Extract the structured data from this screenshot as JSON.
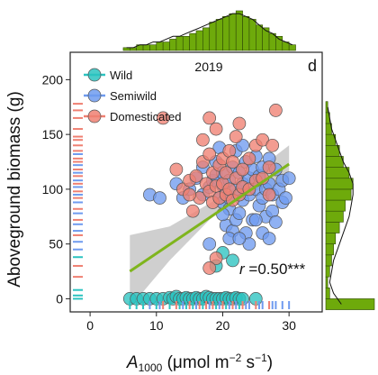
{
  "chart_data": {
    "type": "scatter",
    "panel_label": "d",
    "year": "2019",
    "ylabel": "Aboveground biomass (g)",
    "xlabel_A": "A",
    "xlabel_sub": "1000",
    "xlabel_rest_1": " (μmol m",
    "xlabel_sup_1": "−2",
    "xlabel_rest_2": " s",
    "xlabel_sup_2": "−1",
    "xlabel_rest_3": ")",
    "xlim": [
      -3,
      35
    ],
    "ylim": [
      -12,
      225
    ],
    "x_ticks": [
      0,
      10,
      20,
      30
    ],
    "y_ticks": [
      0,
      50,
      100,
      150,
      200
    ],
    "annotation_r": "r",
    "annotation_rest": " =0.50***",
    "grid": false,
    "legend": "top-left",
    "colors": {
      "wild": "#2cc3c0",
      "semiwild": "#6f9bef",
      "domesticated": "#ef8072",
      "fit": "#7fb51d",
      "band": "#bfbfbf",
      "hist": "#6eaa0b"
    },
    "series": [
      {
        "name": "Wild",
        "color": "#2cc3c0",
        "points": [
          [
            6,
            0
          ],
          [
            7,
            0
          ],
          [
            8,
            0
          ],
          [
            9,
            0
          ],
          [
            10,
            0
          ],
          [
            11,
            0
          ],
          [
            12,
            1
          ],
          [
            12.5,
            0
          ],
          [
            13,
            2
          ],
          [
            13.5,
            0
          ],
          [
            14,
            0
          ],
          [
            14.5,
            1
          ],
          [
            15,
            0
          ],
          [
            15.5,
            0
          ],
          [
            16,
            1
          ],
          [
            16.5,
            0
          ],
          [
            17,
            0
          ],
          [
            17.5,
            2
          ],
          [
            18,
            1
          ],
          [
            18.5,
            0
          ],
          [
            19,
            0
          ],
          [
            19.5,
            0
          ],
          [
            20,
            0
          ],
          [
            20.5,
            1
          ],
          [
            21,
            0
          ],
          [
            21.5,
            0
          ],
          [
            22,
            1
          ],
          [
            22.5,
            0
          ],
          [
            23,
            0
          ],
          [
            25,
            0
          ],
          [
            20,
            42
          ],
          [
            21.5,
            35
          ],
          [
            19,
            30
          ]
        ]
      },
      {
        "name": "Semiwild",
        "color": "#6f9bef",
        "points": [
          [
            9,
            95
          ],
          [
            10.5,
            92
          ],
          [
            13,
            105
          ],
          [
            14,
            92
          ],
          [
            15,
            100
          ],
          [
            16,
            110
          ],
          [
            17,
            95
          ],
          [
            17,
            120
          ],
          [
            18,
            102
          ],
          [
            18.5,
            108
          ],
          [
            19,
            113
          ],
          [
            19,
            125
          ],
          [
            19.5,
            92
          ],
          [
            19.5,
            138
          ],
          [
            20,
            88
          ],
          [
            20,
            103
          ],
          [
            20,
            115
          ],
          [
            20.5,
            67
          ],
          [
            21,
            82
          ],
          [
            21,
            92
          ],
          [
            21,
            108
          ],
          [
            21.5,
            120
          ],
          [
            21.5,
            62
          ],
          [
            22,
            72
          ],
          [
            22,
            100
          ],
          [
            22,
            135
          ],
          [
            22.5,
            78
          ],
          [
            22.5,
            115
          ],
          [
            23,
            90
          ],
          [
            23,
            105
          ],
          [
            23,
            140
          ],
          [
            23.5,
            60
          ],
          [
            23.5,
            125
          ],
          [
            24,
            95
          ],
          [
            24,
            110
          ],
          [
            24.5,
            72
          ],
          [
            24.5,
            118
          ],
          [
            25,
            100
          ],
          [
            25,
            130
          ],
          [
            25.5,
            85
          ],
          [
            25.5,
            112
          ],
          [
            26,
            60
          ],
          [
            26,
            92
          ],
          [
            26,
            120
          ],
          [
            26.5,
            75
          ],
          [
            26.5,
            100
          ],
          [
            27,
            105
          ],
          [
            27,
            128
          ],
          [
            27.5,
            80
          ],
          [
            27.5,
            95
          ],
          [
            28,
            70
          ],
          [
            28,
            118
          ],
          [
            28.5,
            100
          ],
          [
            29,
            88
          ],
          [
            29,
            108
          ],
          [
            29.5,
            92
          ],
          [
            30,
            110
          ],
          [
            21,
            55
          ],
          [
            18,
            50
          ],
          [
            24,
            50
          ],
          [
            27,
            55
          ],
          [
            20,
            77
          ],
          [
            25,
            72
          ],
          [
            22.5,
            55
          ]
        ]
      },
      {
        "name": "Domesticated",
        "color": "#ef8072",
        "points": [
          [
            11,
            165
          ],
          [
            13,
            118
          ],
          [
            14,
            100
          ],
          [
            15,
            108
          ],
          [
            15.5,
            80
          ],
          [
            16,
            112
          ],
          [
            16.5,
            92
          ],
          [
            17,
            125
          ],
          [
            17,
            145
          ],
          [
            17.5,
            105
          ],
          [
            18,
            98
          ],
          [
            18,
            132
          ],
          [
            18.5,
            88
          ],
          [
            18.5,
            115
          ],
          [
            19,
            103
          ],
          [
            19,
            155
          ],
          [
            19.5,
            92
          ],
          [
            19.5,
            122
          ],
          [
            20,
            105
          ],
          [
            20,
            128
          ],
          [
            20.5,
            95
          ],
          [
            20.5,
            115
          ],
          [
            21,
            100
          ],
          [
            21,
            135
          ],
          [
            21.5,
            90
          ],
          [
            21.5,
            125
          ],
          [
            22,
            110
          ],
          [
            22,
            148
          ],
          [
            22.5,
            95
          ],
          [
            22.5,
            160
          ],
          [
            23,
            102
          ],
          [
            23,
            118
          ],
          [
            24,
            100
          ],
          [
            24,
            128
          ],
          [
            25,
            108
          ],
          [
            25,
            140
          ],
          [
            26,
            110
          ],
          [
            26,
            145
          ],
          [
            27,
            95
          ],
          [
            27,
            120
          ],
          [
            27.5,
            140
          ],
          [
            28,
            172
          ],
          [
            19,
            37
          ],
          [
            18,
            28
          ],
          [
            15,
            95
          ],
          [
            18,
            165
          ]
        ]
      }
    ],
    "fit_line": {
      "x": [
        6,
        30
      ],
      "y": [
        25,
        123
      ]
    },
    "ci_band": {
      "x": [
        6,
        12,
        18,
        21,
        24,
        30
      ],
      "lower": [
        -8,
        35,
        72,
        86,
        97,
        107
      ],
      "upper": [
        58,
        66,
        87,
        98,
        112,
        140
      ]
    },
    "rug_x": [
      {
        "x": 6,
        "group": "wild"
      },
      {
        "x": 7,
        "group": "wild"
      },
      {
        "x": 8,
        "group": "wild"
      },
      {
        "x": 9,
        "group": "semiwild"
      },
      {
        "x": 10,
        "group": "wild"
      },
      {
        "x": 10.5,
        "group": "semiwild"
      },
      {
        "x": 11,
        "group": "domesticated"
      },
      {
        "x": 12,
        "group": "wild"
      },
      {
        "x": 13,
        "group": "domesticated"
      },
      {
        "x": 13.5,
        "group": "wild"
      },
      {
        "x": 14,
        "group": "semiwild"
      },
      {
        "x": 14.5,
        "group": "wild"
      },
      {
        "x": 15,
        "group": "domesticated"
      },
      {
        "x": 15.5,
        "group": "wild"
      },
      {
        "x": 16,
        "group": "semiwild"
      },
      {
        "x": 16.5,
        "group": "domesticated"
      },
      {
        "x": 17,
        "group": "wild"
      },
      {
        "x": 17.5,
        "group": "domesticated"
      },
      {
        "x": 18,
        "group": "semiwild"
      },
      {
        "x": 18.5,
        "group": "domesticated"
      },
      {
        "x": 19,
        "group": "wild"
      },
      {
        "x": 19.5,
        "group": "semiwild"
      },
      {
        "x": 20,
        "group": "domesticated"
      },
      {
        "x": 20.5,
        "group": "wild"
      },
      {
        "x": 21,
        "group": "semiwild"
      },
      {
        "x": 21.5,
        "group": "domesticated"
      },
      {
        "x": 22,
        "group": "semiwild"
      },
      {
        "x": 22.5,
        "group": "wild"
      },
      {
        "x": 23,
        "group": "domesticated"
      },
      {
        "x": 23.5,
        "group": "semiwild"
      },
      {
        "x": 24,
        "group": "semiwild"
      },
      {
        "x": 25,
        "group": "domesticated"
      },
      {
        "x": 25.5,
        "group": "semiwild"
      },
      {
        "x": 26,
        "group": "semiwild"
      },
      {
        "x": 27,
        "group": "domesticated"
      },
      {
        "x": 27.5,
        "group": "semiwild"
      },
      {
        "x": 28,
        "group": "semiwild"
      },
      {
        "x": 29,
        "group": "semiwild"
      },
      {
        "x": 30,
        "group": "semiwild"
      }
    ],
    "rug_y": [
      {
        "y": 0,
        "group": "wild"
      },
      {
        "y": 3,
        "group": "wild"
      },
      {
        "y": 8,
        "group": "wild"
      },
      {
        "y": 20,
        "group": "domesticated"
      },
      {
        "y": 30,
        "group": "domesticated"
      },
      {
        "y": 38,
        "group": "wild"
      },
      {
        "y": 45,
        "group": "semiwild"
      },
      {
        "y": 52,
        "group": "semiwild"
      },
      {
        "y": 58,
        "group": "domesticated"
      },
      {
        "y": 62,
        "group": "semiwild"
      },
      {
        "y": 68,
        "group": "semiwild"
      },
      {
        "y": 72,
        "group": "domesticated"
      },
      {
        "y": 78,
        "group": "semiwild"
      },
      {
        "y": 82,
        "group": "domesticated"
      },
      {
        "y": 88,
        "group": "semiwild"
      },
      {
        "y": 92,
        "group": "domesticated"
      },
      {
        "y": 95,
        "group": "semiwild"
      },
      {
        "y": 98,
        "group": "domesticated"
      },
      {
        "y": 102,
        "group": "semiwild"
      },
      {
        "y": 105,
        "group": "domesticated"
      },
      {
        "y": 108,
        "group": "semiwild"
      },
      {
        "y": 112,
        "group": "domesticated"
      },
      {
        "y": 115,
        "group": "semiwild"
      },
      {
        "y": 118,
        "group": "domesticated"
      },
      {
        "y": 122,
        "group": "semiwild"
      },
      {
        "y": 125,
        "group": "domesticated"
      },
      {
        "y": 128,
        "group": "domesticated"
      },
      {
        "y": 132,
        "group": "semiwild"
      },
      {
        "y": 135,
        "group": "domesticated"
      },
      {
        "y": 140,
        "group": "domesticated"
      },
      {
        "y": 145,
        "group": "domesticated"
      },
      {
        "y": 148,
        "group": "domesticated"
      },
      {
        "y": 155,
        "group": "domesticated"
      },
      {
        "y": 165,
        "group": "domesticated"
      },
      {
        "y": 172,
        "group": "domesticated"
      },
      {
        "y": 178,
        "group": "domesticated"
      }
    ],
    "top_histogram": {
      "bin_edges": [
        5,
        6,
        7,
        8,
        9,
        10,
        11,
        12,
        13,
        14,
        15,
        16,
        17,
        18,
        19,
        20,
        21,
        22,
        23,
        24,
        25,
        26,
        27,
        28,
        29,
        30,
        31
      ],
      "counts": [
        1,
        1,
        2,
        2,
        2,
        3,
        3,
        4,
        5,
        5,
        6,
        7,
        8,
        10,
        11,
        12,
        13,
        14,
        12,
        11,
        9,
        8,
        6,
        5,
        3,
        2
      ],
      "density_curve": [
        1,
        1,
        2,
        2,
        3,
        3,
        4,
        5,
        5,
        6,
        7,
        8,
        9,
        10,
        11,
        12,
        13,
        13,
        12,
        11,
        9,
        7,
        6,
        4,
        3,
        2
      ]
    },
    "right_histogram": {
      "bin_edges": [
        -10,
        0,
        10,
        20,
        30,
        40,
        50,
        60,
        70,
        80,
        90,
        100,
        110,
        120,
        130,
        140,
        150,
        160,
        170,
        180
      ],
      "counts": [
        25,
        2,
        1,
        2,
        3,
        4,
        5,
        7,
        9,
        10,
        13,
        14,
        12,
        9,
        7,
        5,
        3,
        2,
        1
      ],
      "density_curve": [
        8,
        4,
        2,
        3,
        4,
        6,
        8,
        10,
        12,
        13,
        14,
        14,
        12,
        9,
        7,
        5,
        3,
        2,
        1
      ]
    }
  }
}
